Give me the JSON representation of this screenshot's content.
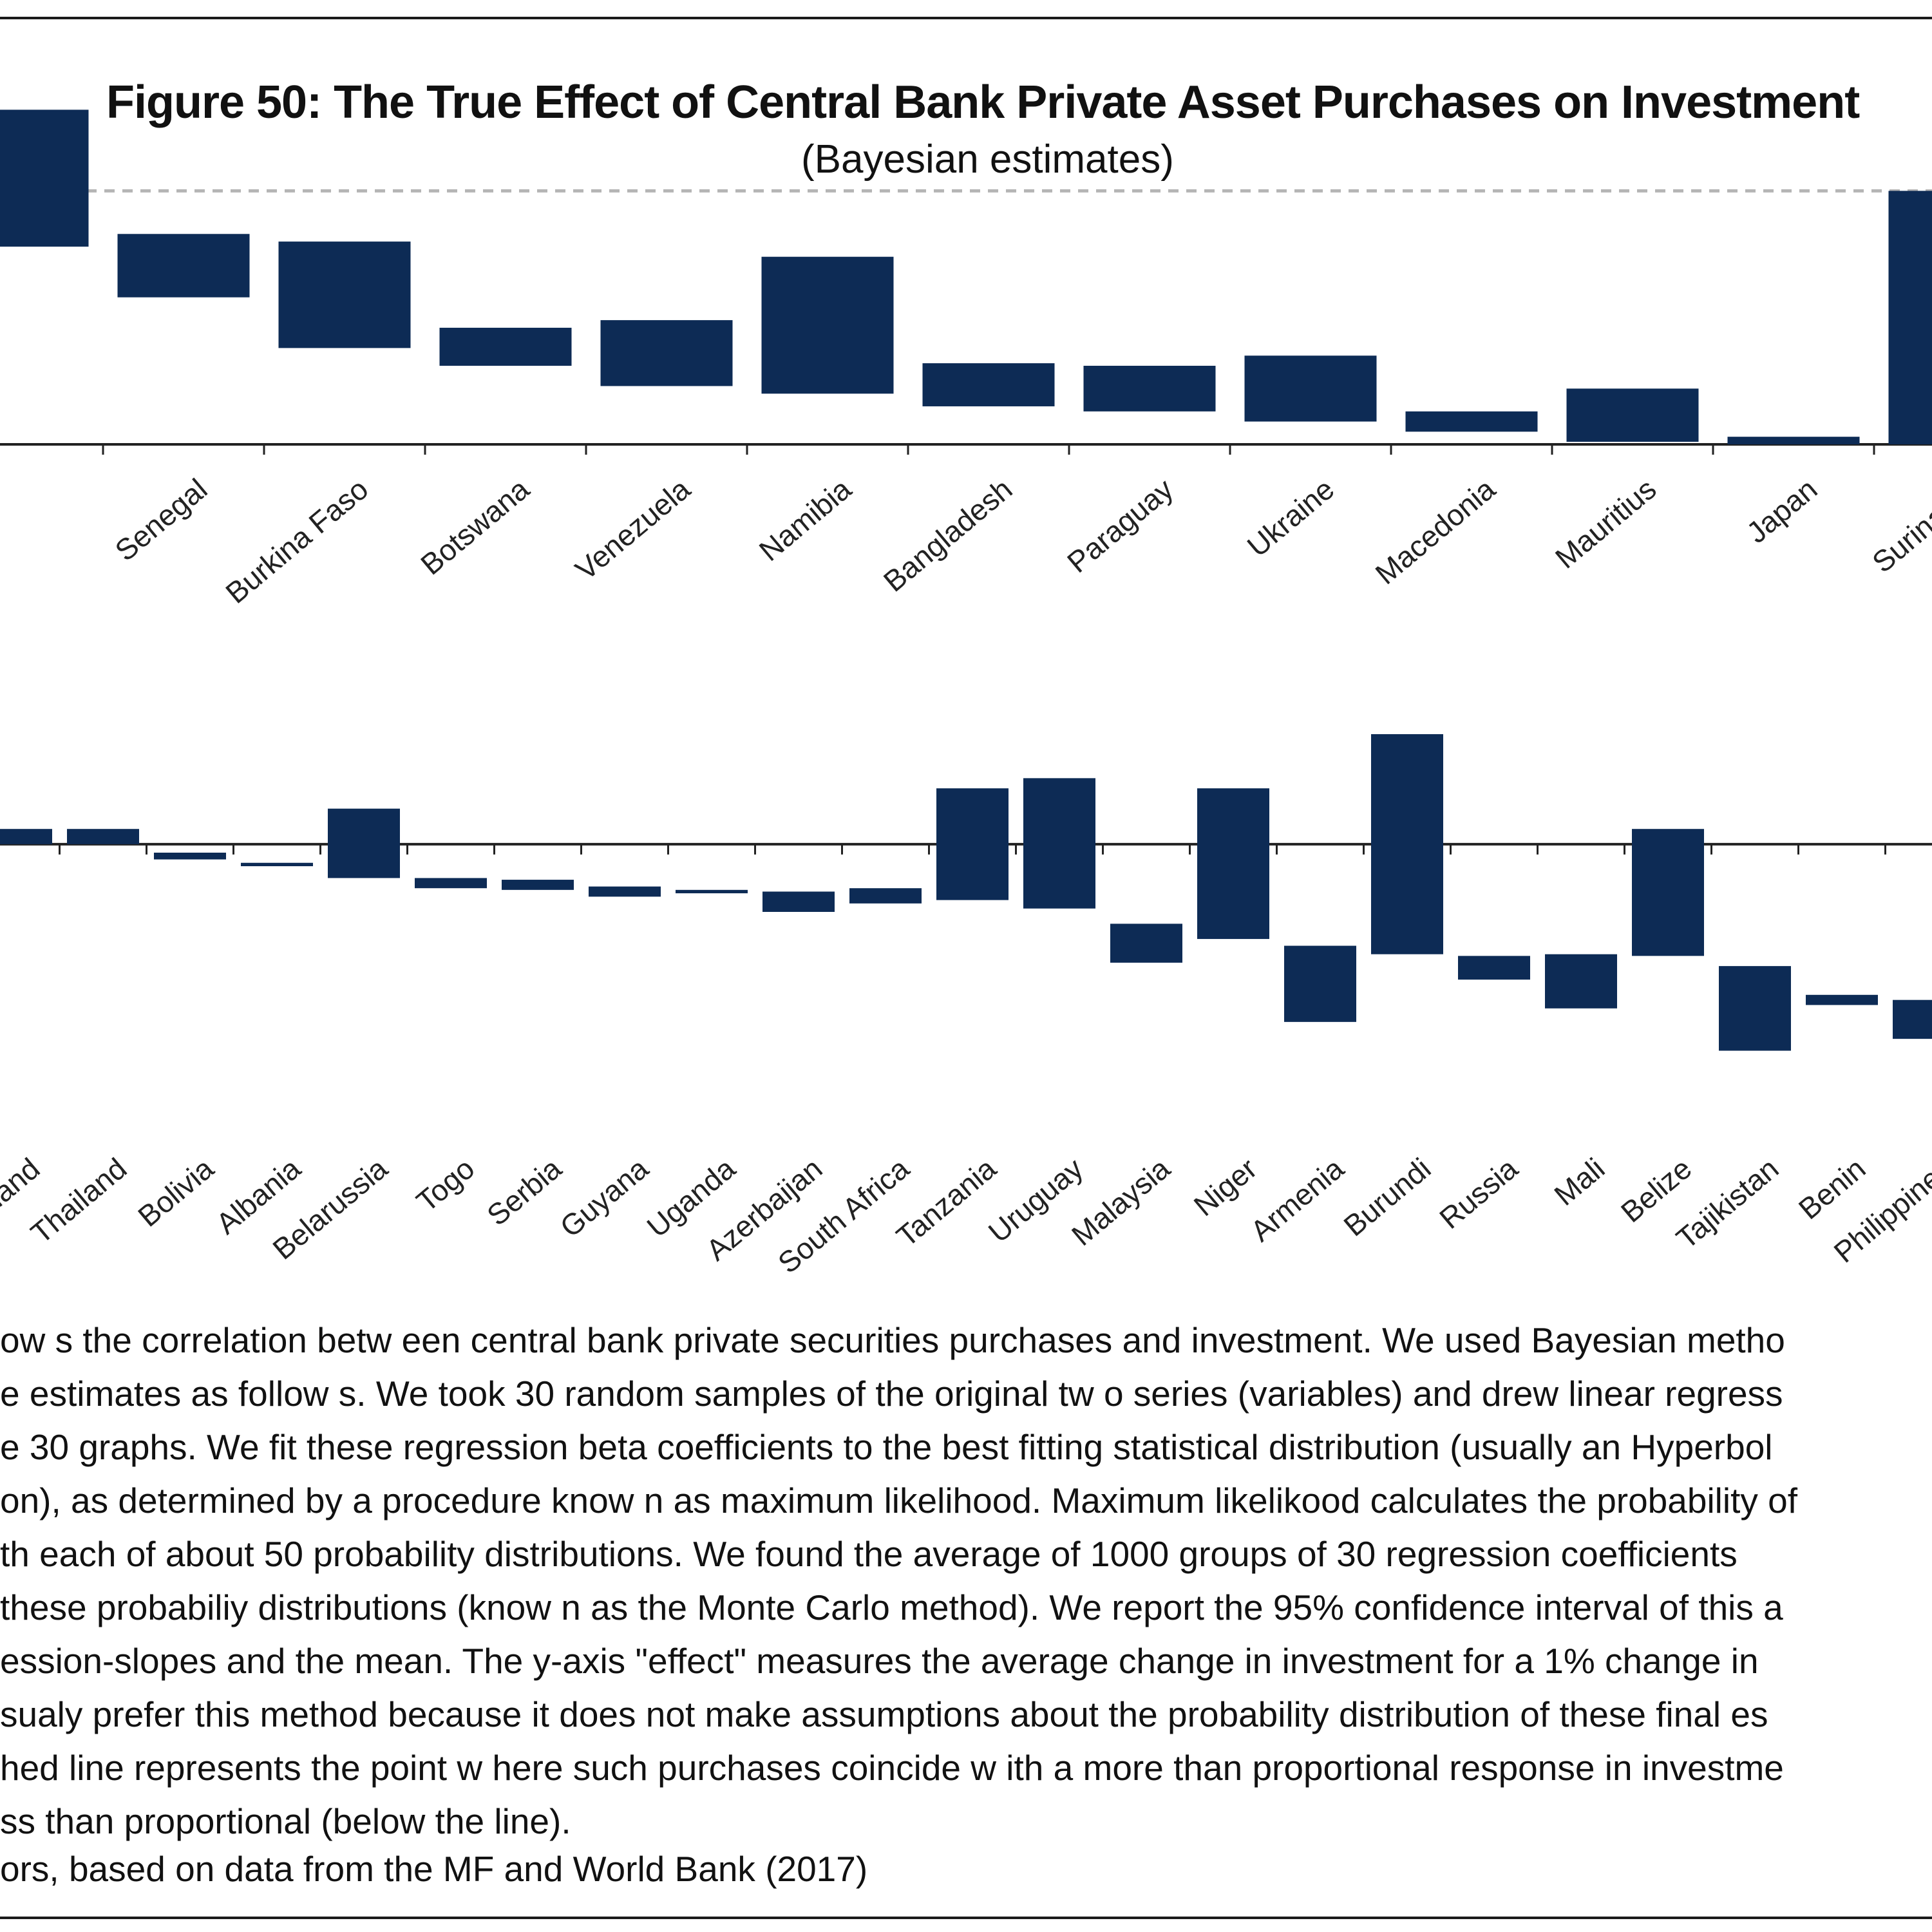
{
  "header": {
    "title": "Figure 50: The True Effect of Central Bank Private Asset Purchases on Investment",
    "subtitle": "(Bayesian estimates)"
  },
  "colors": {
    "bar": "#0d2b55",
    "axis": "#222222",
    "dashed_line": "#b5b5b5"
  },
  "chart_data": [
    {
      "type": "bar",
      "subtype": "floating-range",
      "title": "Figure 50: The True Effect of Central Bank Private Asset Purchases on Investment",
      "subtitle": "(Bayesian estimates)",
      "ylabel": "effect",
      "ylim": [
        0,
        1.1
      ],
      "reference_line": 1.0,
      "categories": [
        "",
        "Senegal",
        "Burkina Faso",
        "Botswana",
        "Venezuela",
        "Namibia",
        "Bangladesh",
        "Paraguay",
        "Ukraine",
        "Macedonia",
        "Mauritius",
        "Japan",
        "Suriname"
      ],
      "low": [
        0.78,
        0.58,
        0.38,
        0.31,
        0.23,
        0.2,
        0.15,
        0.13,
        0.09,
        0.05,
        0.01,
        0.0,
        0.0
      ],
      "high": [
        1.32,
        0.83,
        0.8,
        0.46,
        0.49,
        0.74,
        0.32,
        0.31,
        0.35,
        0.13,
        0.22,
        0.03,
        1.0
      ]
    },
    {
      "type": "bar",
      "subtype": "floating-range",
      "ylabel": "effect",
      "ylim": [
        -1.1,
        0.65
      ],
      "categories": [
        "Swaziland",
        "Thailand",
        "Bolivia",
        "Albania",
        "Belarussia",
        "Togo",
        "Serbia",
        "Guyana",
        "Uganda",
        "Azerbaijan",
        "South Africa",
        "Tanzania",
        "Uruguay",
        "Malaysia",
        "Niger",
        "Armenia",
        "Burundi",
        "Russia",
        "Mali",
        "Belize",
        "Tajikistan",
        "Benin",
        "Philippines"
      ],
      "low": [
        0.0,
        0.0,
        -0.09,
        -0.13,
        -0.2,
        -0.26,
        -0.27,
        -0.31,
        -0.29,
        -0.4,
        -0.35,
        -0.33,
        -0.38,
        -0.7,
        -0.56,
        -1.05,
        -0.65,
        -0.8,
        -0.97,
        -0.66,
        -1.22,
        -0.95,
        -1.15
      ],
      "high": [
        0.09,
        0.09,
        -0.05,
        -0.11,
        0.21,
        -0.2,
        -0.21,
        -0.25,
        -0.27,
        -0.28,
        -0.26,
        0.33,
        0.39,
        -0.47,
        0.33,
        -0.6,
        0.65,
        -0.66,
        -0.65,
        0.09,
        -0.72,
        -0.89,
        -0.92
      ]
    }
  ],
  "notes": {
    "lines": [
      "ow s the correlation betw een central bank private securities purchases and investment. We used Bayesian metho",
      "e estimates as follow s. We took 30 random samples of the original tw o series (variables) and drew  linear regress",
      "e 30 graphs. We fit these regression beta coefficients to the best fitting statistical distribution (usually an Hyperbol",
      "on), as determined by a procedure know n as maximum likelihood. Maximum likelikood calculates the probability of",
      "th each of about 50 probability distributions. We found the average of 1000 groups of 30 regression coefficients",
      "these probabiliy distributions (know n as the Monte Carlo method). We report the 95% confidence interval of this a",
      "ession-slopes and the mean. The y-axis \"effect\" measures the average change in investment for a 1% change in",
      "sualy prefer this method because it does not make assumptions about the probability distribution of these final es",
      "hed line represents the point w here such purchases coincide w ith a more than proportional response in investme",
      "ss than proportional (below  the line)."
    ],
    "source": "ors, based on data from the MF and World Bank (2017)"
  }
}
